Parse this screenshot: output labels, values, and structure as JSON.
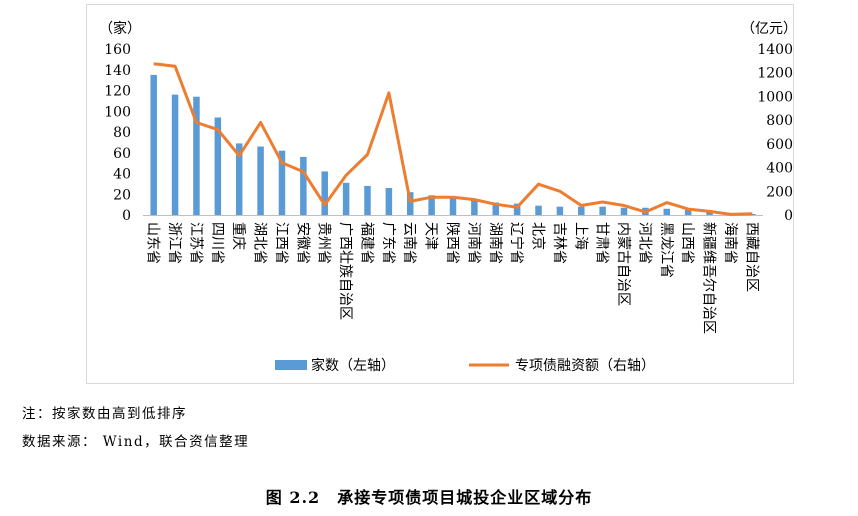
{
  "chart_data": {
    "type": "bar",
    "categories": [
      "山东省",
      "浙江省",
      "江苏省",
      "四川省",
      "重庆",
      "湖北省",
      "江西省",
      "安徽省",
      "贵州省",
      "广西壮族自治区",
      "福建省",
      "广东省",
      "云南省",
      "天津",
      "陕西省",
      "河南省",
      "湖南省",
      "辽宁省",
      "北京",
      "吉林省",
      "上海",
      "甘肃省",
      "内蒙古自治区",
      "河北省",
      "黑龙江省",
      "山西省",
      "新疆维吾尔自治区",
      "海南省",
      "西藏自治区"
    ],
    "series": [
      {
        "name": "家数（左轴）",
        "type": "bar",
        "axis": "left",
        "color": "#5b9bd5",
        "values": [
          135,
          116,
          114,
          94,
          69,
          66,
          62,
          56,
          42,
          31,
          28,
          26,
          22,
          19,
          17,
          14,
          12,
          11,
          9,
          8,
          8,
          8,
          7,
          7,
          6,
          5,
          3,
          2,
          1
        ]
      },
      {
        "name": "专项债融资额（右轴）",
        "type": "line",
        "axis": "right",
        "color": "#ed7d31",
        "values": [
          1275,
          1255,
          780,
          720,
          500,
          780,
          440,
          365,
          85,
          335,
          510,
          1030,
          115,
          150,
          150,
          130,
          90,
          65,
          260,
          200,
          80,
          110,
          80,
          25,
          105,
          50,
          30,
          5,
          10
        ]
      }
    ],
    "left_axis": {
      "label": "（家）",
      "min": 0,
      "max": 160,
      "step": 20,
      "ticks": [
        "0",
        "20",
        "40",
        "60",
        "80",
        "100",
        "120",
        "140",
        "160"
      ]
    },
    "right_axis": {
      "label": "（亿元）",
      "min": 0,
      "max": 1400,
      "step": 200,
      "ticks": [
        "0",
        "200",
        "400",
        "600",
        "800",
        "1000",
        "1200",
        "1400"
      ]
    },
    "legend_position": "bottom",
    "grid": false
  },
  "notes": {
    "note1": "注：按家数由高到低排序",
    "note2": "数据来源： Wind，联合资信整理"
  },
  "caption": "图 2.2　承接专项债项目城投企业区域分布"
}
